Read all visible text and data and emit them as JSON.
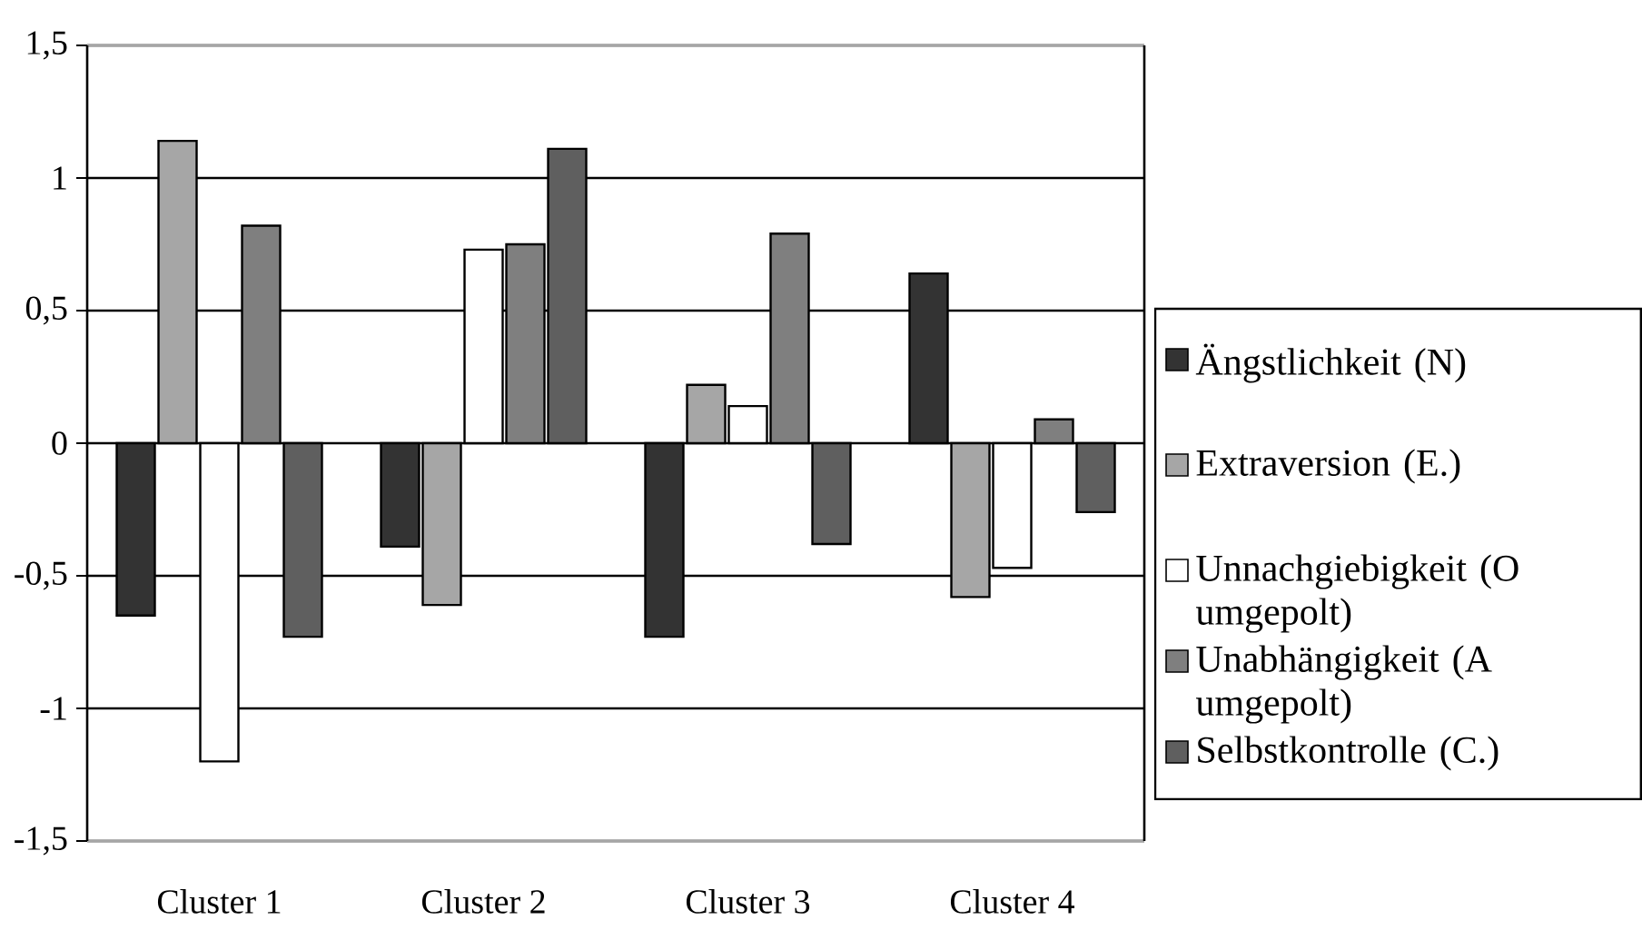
{
  "chart_data": {
    "type": "bar",
    "categories": [
      "Cluster 1",
      "Cluster 2",
      "Cluster 3",
      "Cluster 4"
    ],
    "series": [
      {
        "name": "Ängstlichkeit (N)",
        "color": "#333333",
        "values": [
          -0.65,
          -0.39,
          -0.73,
          0.64
        ]
      },
      {
        "name": "Extraversion (E.)",
        "color": "#a6a6a6",
        "values": [
          1.14,
          -0.61,
          0.22,
          -0.58
        ]
      },
      {
        "name": "Unnachgiebigkeit (O umgepolt)",
        "color": "#ffffff",
        "values": [
          -1.2,
          0.73,
          0.14,
          -0.47
        ]
      },
      {
        "name": "Unabhängigkeit (A umgepolt)",
        "color": "#7f7f7f",
        "values": [
          0.82,
          0.75,
          0.79,
          0.09
        ]
      },
      {
        "name": "Selbstkontrolle (C.)",
        "color": "#5f5f5f",
        "values": [
          -0.73,
          1.11,
          -0.38,
          -0.26
        ]
      }
    ],
    "ylim": [
      -1.5,
      1.5
    ],
    "yticks": [
      {
        "value": -1.5,
        "label": "-1,5"
      },
      -1,
      {
        "value": -0.5,
        "label": "-0,5"
      },
      0,
      {
        "value": 0.5,
        "label": "0,5"
      },
      1,
      {
        "value": 1.5,
        "label": "1,5"
      }
    ],
    "grid": "y",
    "legend": "right"
  }
}
